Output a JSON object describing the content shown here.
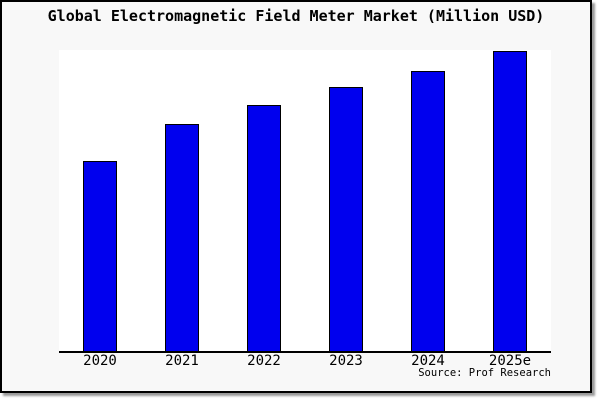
{
  "chart": {
    "title": "Global Electromagnetic Field Meter Market (Million USD)",
    "source": "Source: Prof Research"
  },
  "chart_data": {
    "type": "bar",
    "title": "Global Electromagnetic Field Meter Market (Million USD)",
    "categories": [
      "2020",
      "2021",
      "2022",
      "2023",
      "2024",
      "2025e"
    ],
    "values": [
      63.3,
      75.7,
      82.0,
      88.0,
      93.3,
      100.0
    ],
    "values_unit": "relative bar height, % of 2025e bar (y-axis has no tick labels)",
    "xlabel": "",
    "ylabel": "",
    "ylim": [
      0,
      100
    ],
    "grid": false,
    "legend": false,
    "y_axis_labels_visible": false,
    "source": "Source: Prof Research"
  },
  "colors": {
    "bar_fill": "#0000ee",
    "bar_border": "#000000",
    "frame_border": "#000000",
    "page_background": "#f8f8f8",
    "plot_background": "#ffffff",
    "text": "#000000",
    "shadow": "#777777"
  }
}
